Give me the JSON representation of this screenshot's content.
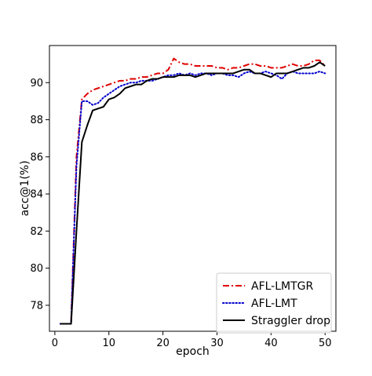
{
  "chart_data": {
    "type": "line",
    "xlabel": "epoch",
    "ylabel": "acc@1(%)",
    "xlim": [
      -1,
      52
    ],
    "ylim": [
      76.6,
      92.0
    ],
    "xticks": [
      0,
      10,
      20,
      30,
      40,
      50
    ],
    "yticks": [
      78,
      80,
      82,
      84,
      86,
      88,
      90
    ],
    "grid": false,
    "legend_position": "lower-right",
    "series": [
      {
        "name": "AFL-LMTGR",
        "color": "#e00000",
        "style": "dashdot",
        "x": [
          1,
          2,
          3,
          4,
          5,
          6,
          7,
          8,
          9,
          10,
          11,
          12,
          13,
          14,
          15,
          16,
          17,
          18,
          19,
          20,
          21,
          22,
          23,
          24,
          25,
          26,
          27,
          28,
          29,
          30,
          31,
          32,
          33,
          34,
          35,
          36,
          37,
          38,
          39,
          40,
          41,
          42,
          43,
          44,
          45,
          46,
          47,
          48,
          49,
          50
        ],
        "y": [
          77.0,
          77.0,
          77.0,
          86.0,
          89.1,
          89.4,
          89.6,
          89.7,
          89.8,
          89.9,
          90.0,
          90.1,
          90.1,
          90.2,
          90.2,
          90.3,
          90.3,
          90.4,
          90.5,
          90.5,
          90.7,
          91.3,
          91.1,
          91.0,
          91.0,
          90.9,
          90.9,
          90.9,
          90.9,
          90.8,
          90.8,
          90.7,
          90.8,
          90.8,
          90.9,
          91.0,
          91.0,
          90.9,
          90.9,
          90.8,
          90.8,
          90.8,
          90.9,
          91.0,
          90.9,
          90.9,
          91.0,
          91.2,
          91.2,
          90.9
        ]
      },
      {
        "name": "AFL-LMT",
        "color": "#0000cc",
        "style": "dotted",
        "x": [
          1,
          2,
          3,
          4,
          5,
          6,
          7,
          8,
          9,
          10,
          11,
          12,
          13,
          14,
          15,
          16,
          17,
          18,
          19,
          20,
          21,
          22,
          23,
          24,
          25,
          26,
          27,
          28,
          29,
          30,
          31,
          32,
          33,
          34,
          35,
          36,
          37,
          38,
          39,
          40,
          41,
          42,
          43,
          44,
          45,
          46,
          47,
          48,
          49,
          50
        ],
        "y": [
          77.0,
          77.0,
          77.0,
          85.5,
          89.0,
          89.0,
          88.8,
          88.9,
          89.2,
          89.4,
          89.6,
          89.8,
          89.9,
          90.0,
          90.0,
          90.1,
          90.1,
          90.1,
          90.2,
          90.3,
          90.4,
          90.4,
          90.5,
          90.4,
          90.5,
          90.4,
          90.5,
          90.5,
          90.4,
          90.5,
          90.5,
          90.4,
          90.4,
          90.3,
          90.5,
          90.6,
          90.5,
          90.5,
          90.6,
          90.5,
          90.4,
          90.2,
          90.5,
          90.6,
          90.5,
          90.5,
          90.5,
          90.5,
          90.6,
          90.5
        ]
      },
      {
        "name": "Straggler drop",
        "color": "#000000",
        "style": "solid",
        "x": [
          1,
          2,
          3,
          4,
          5,
          6,
          7,
          8,
          9,
          10,
          11,
          12,
          13,
          14,
          15,
          16,
          17,
          18,
          19,
          20,
          21,
          22,
          23,
          24,
          25,
          26,
          27,
          28,
          29,
          30,
          31,
          32,
          33,
          34,
          35,
          36,
          37,
          38,
          39,
          40,
          41,
          42,
          43,
          44,
          45,
          46,
          47,
          48,
          49,
          50
        ],
        "y": [
          77.0,
          77.0,
          77.0,
          82.0,
          86.8,
          87.7,
          88.5,
          88.6,
          88.7,
          89.1,
          89.2,
          89.4,
          89.7,
          89.8,
          89.9,
          89.9,
          90.1,
          90.2,
          90.2,
          90.3,
          90.3,
          90.3,
          90.4,
          90.4,
          90.4,
          90.3,
          90.4,
          90.5,
          90.5,
          90.5,
          90.5,
          90.5,
          90.5,
          90.6,
          90.7,
          90.7,
          90.5,
          90.5,
          90.4,
          90.3,
          90.5,
          90.5,
          90.5,
          90.6,
          90.7,
          90.8,
          90.8,
          90.9,
          91.1,
          90.9
        ]
      }
    ]
  }
}
